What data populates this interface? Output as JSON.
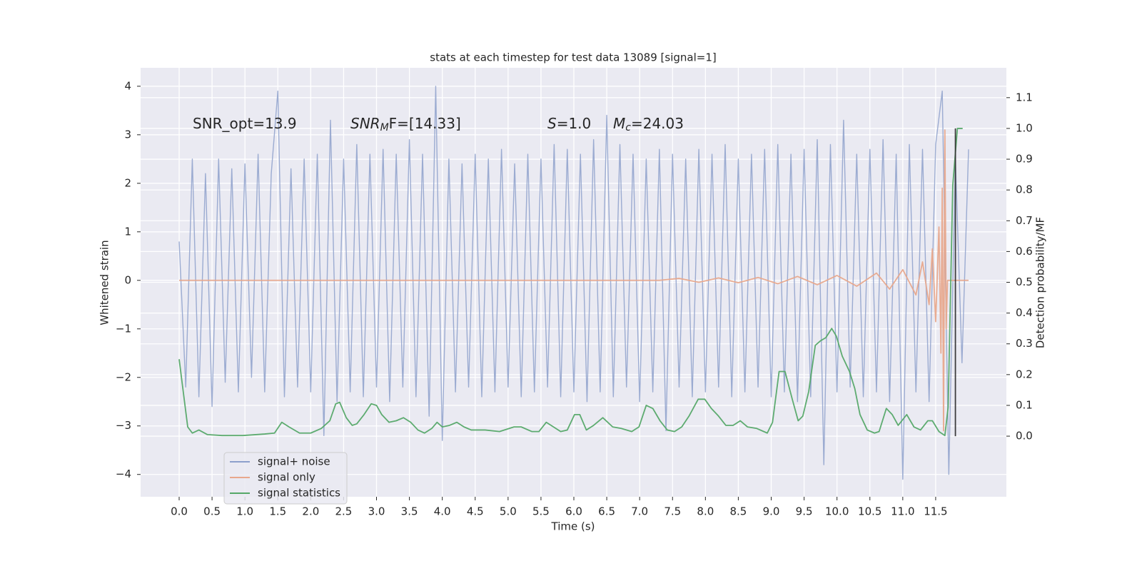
{
  "chart_data": {
    "type": "line",
    "title": "stats at each timestep for test data 13089 [signal=1]",
    "xlabel": "Time (s)",
    "ylabel": "Whitened strain",
    "y2label": "Detection probability/MF",
    "xlim": [
      -0.586,
      12.575
    ],
    "ylim": [
      -4.46,
      4.38
    ],
    "y2lim": [
      -0.197,
      1.197
    ],
    "xticks": [
      {
        "value": 0,
        "label": "0.0"
      },
      0.5,
      {
        "value": 1,
        "label": "1.0"
      },
      1.5,
      {
        "value": 2,
        "label": "2.0"
      },
      2.5,
      {
        "value": 3,
        "label": "3.0"
      },
      3.5,
      {
        "value": 4,
        "label": "4.0"
      },
      4.5,
      {
        "value": 5,
        "label": "5.0"
      },
      5.5,
      {
        "value": 6,
        "label": "6.0"
      },
      6.5,
      {
        "value": 7,
        "label": "7.0"
      },
      7.5,
      {
        "value": 8,
        "label": "8.0"
      },
      8.5,
      {
        "value": 9,
        "label": "9.0"
      },
      9.5,
      {
        "value": 10,
        "label": "10.0"
      },
      10.5,
      {
        "value": 11,
        "label": "11.0"
      },
      11.5
    ],
    "yticks": [
      {
        "value": -4,
        "label": "−4"
      },
      {
        "value": -3,
        "label": "−3"
      },
      {
        "value": -2,
        "label": "−2"
      },
      {
        "value": -1,
        "label": "−1"
      },
      0,
      1,
      2,
      3,
      4
    ],
    "y2ticks": [
      {
        "value": 0,
        "label": "0.0"
      },
      0.1,
      0.2,
      0.3,
      0.4,
      0.5,
      0.6,
      0.7,
      0.8,
      0.9,
      {
        "value": 1,
        "label": "1.0"
      },
      1.1
    ],
    "grid": true,
    "legend": "lower left",
    "annotations": [
      {
        "base": "SNR_opt=13.9"
      },
      {
        "base": "SNR",
        "sub": "M",
        "tail": "F=[14.33]"
      },
      {
        "base": "S",
        "tail": "=1.0"
      },
      {
        "base": "M",
        "sub": "c",
        "tail": "=24.03"
      }
    ],
    "series": [
      {
        "name": "signal+ noise",
        "color": "#8da0cb",
        "x": [
          0.0,
          0.1,
          0.2,
          0.3,
          0.4,
          0.5,
          0.6,
          0.7,
          0.8,
          0.9,
          1.0,
          1.1,
          1.2,
          1.3,
          1.4,
          1.5,
          1.6,
          1.7,
          1.8,
          1.9,
          2.0,
          2.1,
          2.2,
          2.3,
          2.4,
          2.5,
          2.6,
          2.7,
          2.8,
          2.9,
          3.0,
          3.1,
          3.2,
          3.3,
          3.4,
          3.5,
          3.6,
          3.7,
          3.8,
          3.9,
          4.0,
          4.1,
          4.2,
          4.3,
          4.4,
          4.5,
          4.6,
          4.7,
          4.8,
          4.9,
          5.0,
          5.1,
          5.2,
          5.3,
          5.4,
          5.5,
          5.6,
          5.7,
          5.8,
          5.9,
          6.0,
          6.1,
          6.2,
          6.3,
          6.4,
          6.5,
          6.6,
          6.7,
          6.8,
          6.9,
          7.0,
          7.1,
          7.2,
          7.3,
          7.4,
          7.5,
          7.6,
          7.7,
          7.8,
          7.9,
          8.0,
          8.1,
          8.2,
          8.3,
          8.4,
          8.5,
          8.6,
          8.7,
          8.8,
          8.9,
          9.0,
          9.1,
          9.2,
          9.3,
          9.4,
          9.5,
          9.6,
          9.7,
          9.8,
          9.9,
          10.0,
          10.1,
          10.2,
          10.3,
          10.4,
          10.5,
          10.6,
          10.7,
          10.8,
          10.9,
          11.0,
          11.1,
          11.2,
          11.3,
          11.4,
          11.5,
          11.6,
          11.7,
          11.8,
          11.9,
          12.0
        ],
        "values": [
          0.8,
          -2.2,
          2.5,
          -2.4,
          2.2,
          -2.6,
          2.5,
          -2.1,
          2.3,
          -2.3,
          2.4,
          -2.0,
          2.6,
          -2.3,
          2.2,
          3.9,
          -2.4,
          2.3,
          -2.2,
          2.5,
          -2.3,
          2.6,
          -3.2,
          3.3,
          -2.5,
          2.5,
          -2.3,
          2.8,
          -2.4,
          2.6,
          -2.2,
          2.7,
          -2.5,
          2.6,
          -2.2,
          2.9,
          -2.4,
          2.6,
          -2.8,
          4.0,
          -3.3,
          2.5,
          -2.3,
          2.4,
          -2.2,
          2.6,
          -2.4,
          2.5,
          -2.3,
          2.7,
          -2.2,
          2.4,
          -2.4,
          2.6,
          -2.3,
          2.5,
          -2.2,
          2.8,
          -2.4,
          2.7,
          -2.3,
          2.6,
          -2.5,
          2.9,
          -2.3,
          3.4,
          -2.4,
          2.8,
          -2.2,
          2.6,
          -2.5,
          2.5,
          -2.3,
          2.7,
          -3.1,
          2.6,
          -2.2,
          2.5,
          -2.4,
          2.7,
          -2.3,
          2.6,
          -2.2,
          2.8,
          -2.4,
          2.5,
          -2.3,
          2.6,
          -2.2,
          2.7,
          -2.4,
          2.8,
          -2.3,
          2.6,
          -2.5,
          2.7,
          -2.4,
          2.9,
          -3.8,
          2.8,
          -2.3,
          3.3,
          -2.2,
          2.6,
          -2.4,
          2.7,
          -2.3,
          2.9,
          -2.5,
          2.6,
          -4.1,
          2.8,
          -2.3,
          2.7,
          -2.5,
          2.8,
          3.9,
          -4.0,
          2.5,
          -1.7,
          2.7
        ]
      },
      {
        "name": "signal only",
        "color": "#e8a88c",
        "x": [
          0.0,
          7.3,
          7.6,
          7.9,
          8.2,
          8.5,
          8.8,
          9.1,
          9.4,
          9.7,
          10.0,
          10.3,
          10.6,
          10.8,
          11.0,
          11.2,
          11.3,
          11.4,
          11.45,
          11.5,
          11.55,
          11.58,
          11.6,
          11.62,
          11.64,
          11.66,
          11.68,
          12.0
        ],
        "values": [
          0,
          0,
          0.04,
          -0.04,
          0.05,
          -0.05,
          0.06,
          -0.07,
          0.08,
          -0.09,
          0.1,
          -0.12,
          0.15,
          -0.18,
          0.22,
          -0.3,
          0.38,
          -0.5,
          0.65,
          -0.85,
          1.1,
          -1.5,
          1.9,
          -3.1,
          3.1,
          -1.0,
          0.0,
          0.0
        ]
      },
      {
        "name": "signal statistics",
        "color": "#55a868",
        "axis": "y2",
        "x": [
          0,
          0.05,
          0.13,
          0.2,
          0.3,
          0.43,
          0.65,
          0.97,
          1.3,
          1.45,
          1.56,
          1.67,
          1.83,
          2.0,
          2.16,
          2.29,
          2.38,
          2.44,
          2.54,
          2.63,
          2.7,
          2.81,
          2.92,
          3.0,
          3.08,
          3.19,
          3.3,
          3.41,
          3.52,
          3.63,
          3.73,
          3.84,
          3.92,
          4.0,
          4.11,
          4.22,
          4.33,
          4.44,
          4.65,
          4.87,
          5.09,
          5.2,
          5.36,
          5.47,
          5.58,
          5.69,
          5.8,
          5.9,
          6.01,
          6.09,
          6.19,
          6.3,
          6.44,
          6.59,
          6.72,
          6.88,
          6.99,
          7.1,
          7.2,
          7.31,
          7.42,
          7.53,
          7.64,
          7.75,
          7.89,
          7.99,
          8.09,
          8.2,
          8.31,
          8.42,
          8.53,
          8.64,
          8.78,
          8.94,
          9.02,
          9.12,
          9.21,
          9.32,
          9.41,
          9.48,
          9.57,
          9.67,
          9.75,
          9.83,
          9.92,
          9.99,
          10.08,
          10.19,
          10.27,
          10.35,
          10.46,
          10.57,
          10.64,
          10.75,
          10.84,
          10.93,
          11.06,
          11.17,
          11.27,
          11.38,
          11.45,
          11.55,
          11.64,
          11.69,
          11.76,
          11.83,
          11.91
        ],
        "values": [
          0.25,
          0.165,
          0.03,
          0.01,
          0.02,
          0.005,
          0.002,
          0.002,
          0.007,
          0.01,
          0.045,
          0.03,
          0.01,
          0.01,
          0.025,
          0.05,
          0.105,
          0.11,
          0.06,
          0.035,
          0.04,
          0.07,
          0.105,
          0.1,
          0.07,
          0.045,
          0.05,
          0.06,
          0.045,
          0.02,
          0.01,
          0.025,
          0.045,
          0.03,
          0.035,
          0.045,
          0.03,
          0.02,
          0.02,
          0.015,
          0.03,
          0.03,
          0.015,
          0.015,
          0.045,
          0.03,
          0.015,
          0.02,
          0.07,
          0.07,
          0.02,
          0.035,
          0.06,
          0.03,
          0.025,
          0.015,
          0.03,
          0.1,
          0.09,
          0.05,
          0.02,
          0.015,
          0.03,
          0.065,
          0.12,
          0.12,
          0.09,
          0.065,
          0.035,
          0.035,
          0.05,
          0.03,
          0.025,
          0.01,
          0.045,
          0.21,
          0.21,
          0.12,
          0.05,
          0.065,
          0.145,
          0.295,
          0.31,
          0.32,
          0.35,
          0.325,
          0.26,
          0.21,
          0.155,
          0.07,
          0.02,
          0.01,
          0.015,
          0.09,
          0.07,
          0.035,
          0.07,
          0.03,
          0.02,
          0.05,
          0.05,
          0.015,
          0.002,
          0.095,
          0.815,
          1.0,
          1.0
        ]
      },
      {
        "color": "#333333",
        "axis": "y2",
        "x": [
          11.8,
          11.8
        ],
        "values": [
          0,
          1
        ]
      }
    ]
  }
}
